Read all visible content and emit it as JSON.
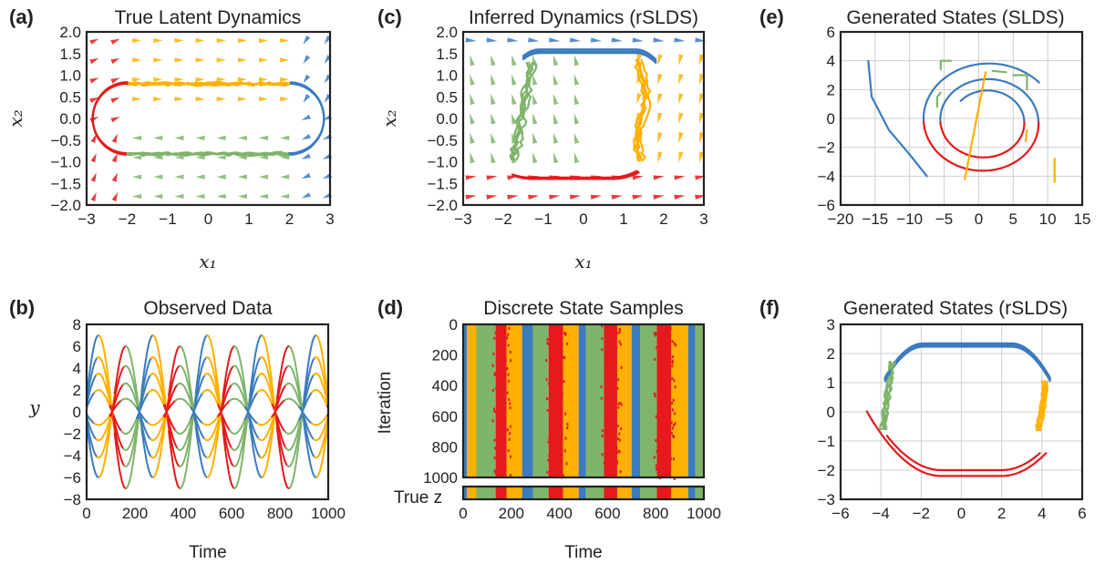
{
  "colors": {
    "blue": "#3b7bbf",
    "red": "#e41a1c",
    "green": "#7fb46b",
    "orange": "#ffb000"
  },
  "panels": {
    "a": {
      "letter": "(a)",
      "title": "True Latent Dynamics"
    },
    "b": {
      "letter": "(b)",
      "title": "Observed Data"
    },
    "c": {
      "letter": "(c)",
      "title": "Inferred Dynamics (rSLDS)"
    },
    "d": {
      "letter": "(d)",
      "title": "Discrete State Samples"
    },
    "e": {
      "letter": "(e)",
      "title": "Generated States (SLDS)"
    },
    "f": {
      "letter": "(f)",
      "title": "Generated States (rSLDS)"
    }
  },
  "chart_data": [
    {
      "id": "a",
      "type": "line",
      "title": "True Latent Dynamics",
      "xlabel": "x₁",
      "ylabel": "x₂",
      "xlim": [
        -3,
        3
      ],
      "ylim": [
        -2,
        2
      ],
      "xticks": [
        "−3",
        "−2",
        "−1",
        "0",
        "1",
        "2",
        "3"
      ],
      "yticks": [
        "2.0",
        "1.5",
        "1.0",
        "0.5",
        "0.0",
        "−0.5",
        "−1.0",
        "−1.5",
        "−2.0"
      ],
      "background": "vector field",
      "series": [
        {
          "state": "orange",
          "values": [
            [
              -2,
              0.82
            ],
            [
              2,
              0.78
            ]
          ]
        },
        {
          "state": "blue",
          "values": [
            [
              2,
              0.8
            ],
            [
              2.6,
              0.65
            ],
            [
              2.85,
              0
            ],
            [
              2.6,
              -0.65
            ],
            [
              2,
              -0.85
            ]
          ]
        },
        {
          "state": "green",
          "values": [
            [
              2,
              -0.85
            ],
            [
              -2,
              -0.85
            ]
          ]
        },
        {
          "state": "red",
          "values": [
            [
              -2,
              -0.85
            ],
            [
              -2.6,
              -0.65
            ],
            [
              -2.85,
              0
            ],
            [
              -2.6,
              0.65
            ],
            [
              -2,
              0.82
            ]
          ]
        }
      ]
    },
    {
      "id": "b",
      "type": "line",
      "title": "Observed Data",
      "xlabel": "Time",
      "ylabel": "y",
      "xlim": [
        0,
        1000
      ],
      "ylim": [
        -8,
        8
      ],
      "xticks": [
        "0",
        "200",
        "400",
        "600",
        "800",
        "1000"
      ],
      "yticks": [
        "8",
        "6",
        "4",
        "2",
        "0",
        "−2",
        "−4",
        "−6",
        "−8"
      ],
      "period": 225,
      "series_amplitudes": [
        7,
        5,
        3.5,
        2,
        6,
        4.2,
        2.6,
        1.2
      ]
    },
    {
      "id": "c",
      "type": "line",
      "title": "Inferred Dynamics (rSLDS)",
      "xlabel": "x₁",
      "ylabel": "x₂",
      "xlim": [
        -3,
        3
      ],
      "ylim": [
        -2,
        2
      ],
      "xticks": [
        "−3",
        "−2",
        "−1",
        "0",
        "1",
        "2",
        "3"
      ],
      "yticks": [
        "2.0",
        "1.5",
        "1.0",
        "0.5",
        "0.0",
        "−0.5",
        "−1.0",
        "−1.5",
        "−2.0"
      ],
      "background": "vector field",
      "series": [
        {
          "state": "blue",
          "values": [
            [
              -1.6,
              1.3
            ],
            [
              0,
              1.6
            ],
            [
              1.8,
              1.25
            ]
          ]
        },
        {
          "state": "orange",
          "values": [
            [
              1.6,
              1.3
            ],
            [
              1.45,
              -1.05
            ]
          ]
        },
        {
          "state": "red",
          "values": [
            [
              1.3,
              -1.05
            ],
            [
              0,
              -1.4
            ],
            [
              -1.8,
              -1.0
            ]
          ]
        },
        {
          "state": "green",
          "values": [
            [
              -1.8,
              -1.0
            ],
            [
              -1.35,
              1.2
            ]
          ]
        }
      ]
    },
    {
      "id": "d",
      "type": "heatmap",
      "title": "Discrete State Samples",
      "xlabel": "Time",
      "ylabel": "Iteration",
      "bottom_label": "True z",
      "xlim": [
        0,
        1000
      ],
      "ylim": [
        1000,
        0
      ],
      "xticks": [
        "0",
        "200",
        "400",
        "600",
        "800",
        "1000"
      ],
      "yticks": [
        "0",
        "200",
        "400",
        "600",
        "800",
        "1000"
      ],
      "segments": [
        {
          "from": 0,
          "to": 15,
          "state": "blue"
        },
        {
          "from": 15,
          "to": 55,
          "state": "orange"
        },
        {
          "from": 55,
          "to": 135,
          "state": "green"
        },
        {
          "from": 135,
          "to": 180,
          "state": "red"
        },
        {
          "from": 180,
          "to": 245,
          "state": "orange"
        },
        {
          "from": 245,
          "to": 290,
          "state": "blue"
        },
        {
          "from": 290,
          "to": 355,
          "state": "green"
        },
        {
          "from": 355,
          "to": 415,
          "state": "red"
        },
        {
          "from": 415,
          "to": 480,
          "state": "orange"
        },
        {
          "from": 480,
          "to": 510,
          "state": "blue"
        },
        {
          "from": 510,
          "to": 585,
          "state": "green"
        },
        {
          "from": 585,
          "to": 640,
          "state": "red"
        },
        {
          "from": 640,
          "to": 700,
          "state": "orange"
        },
        {
          "from": 700,
          "to": 735,
          "state": "blue"
        },
        {
          "from": 735,
          "to": 805,
          "state": "green"
        },
        {
          "from": 805,
          "to": 865,
          "state": "red"
        },
        {
          "from": 865,
          "to": 935,
          "state": "orange"
        },
        {
          "from": 935,
          "to": 965,
          "state": "blue"
        },
        {
          "from": 965,
          "to": 1000,
          "state": "green"
        }
      ]
    },
    {
      "id": "e",
      "type": "line",
      "title": "Generated States (SLDS)",
      "xlim": [
        -20,
        15
      ],
      "ylim": [
        -6,
        6
      ],
      "xticks": [
        "−20",
        "−15",
        "−10",
        "−5",
        "0",
        "5",
        "10",
        "15"
      ],
      "yticks": [
        "6",
        "4",
        "2",
        "0",
        "−2",
        "−4",
        "−6"
      ],
      "grid": true
    },
    {
      "id": "f",
      "type": "line",
      "title": "Generated States (rSLDS)",
      "xlim": [
        -6,
        6
      ],
      "ylim": [
        -3,
        3
      ],
      "xticks": [
        "−6",
        "−4",
        "−2",
        "0",
        "2",
        "4",
        "6"
      ],
      "yticks": [
        "3",
        "2",
        "1",
        "0",
        "−1",
        "−2",
        "−3"
      ],
      "grid": true
    }
  ]
}
